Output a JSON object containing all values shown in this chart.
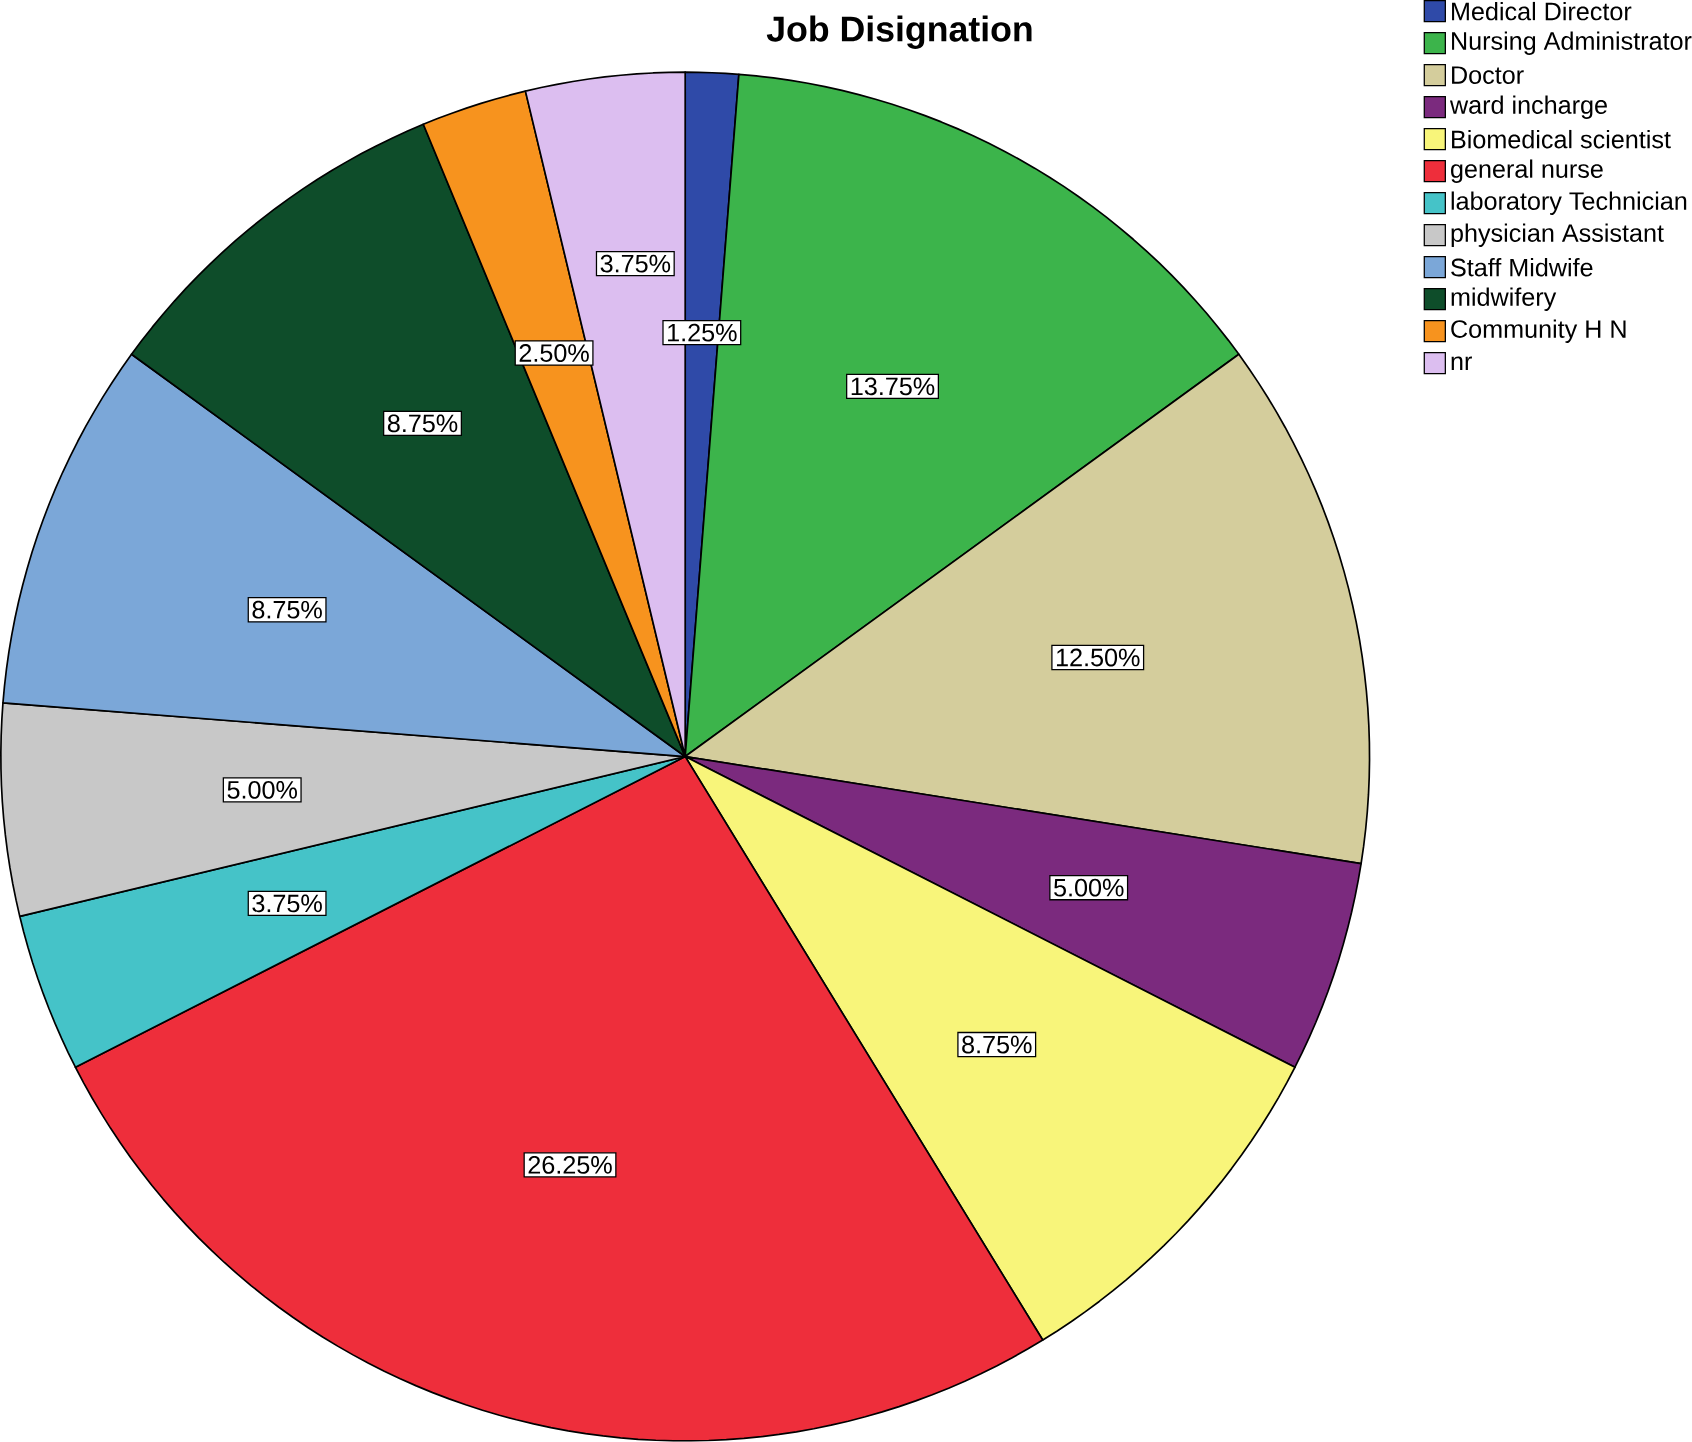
{
  "chart_data": {
    "type": "pie",
    "title": "Job Disignation",
    "categories": [
      "Medical Director",
      "Nursing Administrator",
      "Doctor",
      "ward incharge",
      "Biomedical scientist",
      "general nurse",
      "laboratory Technician",
      "physician Assistant",
      "Staff Midwife",
      "midwifery",
      "Community H N",
      "nr"
    ],
    "values": [
      1.25,
      13.75,
      12.5,
      5,
      8.75,
      26.25,
      3.75,
      5,
      8.75,
      8.75,
      2.5,
      3.75
    ],
    "value_labels": [
      "1.25%",
      "13.75%",
      "12.50%",
      "5.00%",
      "8.75%",
      "26.25%",
      "3.75%",
      "5.00%",
      "8.75%",
      "8.75%",
      "2.50%",
      "3.75%"
    ],
    "colors": [
      "#2f4aa8",
      "#3cb44b",
      "#d4cd9c",
      "#7b2a7e",
      "#f8f57a",
      "#ee2e3b",
      "#45c3c8",
      "#c8c8c8",
      "#7ba7d8",
      "#0e4d2a",
      "#f7931e",
      "#dcbef0"
    ],
    "legend": "top right"
  }
}
